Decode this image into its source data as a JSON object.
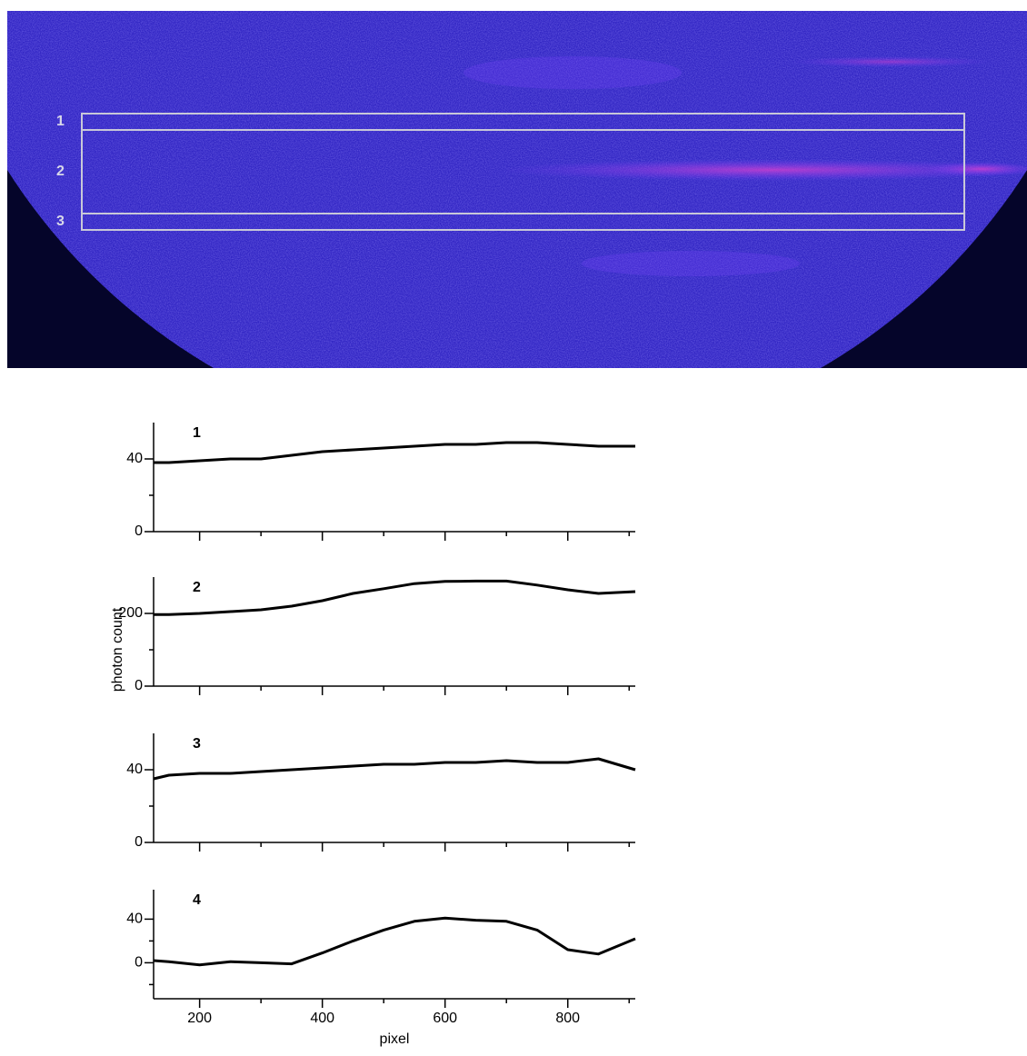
{
  "image": {
    "region_labels": [
      "1",
      "2",
      "3"
    ]
  },
  "chart_data": [
    {
      "type": "line",
      "title": "1",
      "x": [
        125,
        150,
        200,
        250,
        300,
        350,
        400,
        450,
        500,
        550,
        600,
        650,
        700,
        750,
        800,
        850,
        910
      ],
      "series": [
        {
          "color": "#000000",
          "values": [
            38,
            38,
            39,
            40,
            40,
            42,
            44,
            45,
            46,
            47,
            48,
            48,
            49,
            49,
            48,
            47,
            47
          ]
        }
      ],
      "xlim": [
        125,
        910
      ],
      "ylim": [
        0,
        60
      ],
      "xticks": [
        200,
        400,
        600,
        800
      ],
      "xminor": [
        300,
        500,
        700,
        900
      ],
      "show_xtick_labels": false,
      "yticks": [
        0,
        40
      ],
      "yminor": [
        20
      ]
    },
    {
      "type": "line",
      "title": "2",
      "ylabel": "photon count",
      "x": [
        125,
        150,
        200,
        250,
        300,
        350,
        400,
        450,
        500,
        550,
        600,
        650,
        700,
        750,
        800,
        850,
        910
      ],
      "series": [
        {
          "color": "#000000",
          "values": [
            197,
            197,
            200,
            205,
            210,
            220,
            235,
            255,
            268,
            282,
            288,
            289,
            289,
            278,
            265,
            255,
            260
          ]
        }
      ],
      "xlim": [
        125,
        910
      ],
      "ylim": [
        0,
        300
      ],
      "xticks": [
        200,
        400,
        600,
        800
      ],
      "xminor": [
        300,
        500,
        700,
        900
      ],
      "show_xtick_labels": false,
      "yticks": [
        0,
        200
      ],
      "yminor": [
        100
      ]
    },
    {
      "type": "line",
      "title": "3",
      "x": [
        125,
        150,
        200,
        250,
        300,
        350,
        400,
        450,
        500,
        550,
        600,
        650,
        700,
        750,
        800,
        850,
        910
      ],
      "series": [
        {
          "color": "#000000",
          "values": [
            35,
            37,
            38,
            38,
            39,
            40,
            41,
            42,
            43,
            43,
            44,
            44,
            45,
            44,
            44,
            46,
            40
          ]
        }
      ],
      "xlim": [
        125,
        910
      ],
      "ylim": [
        0,
        60
      ],
      "xticks": [
        200,
        400,
        600,
        800
      ],
      "xminor": [
        300,
        500,
        700,
        900
      ],
      "show_xtick_labels": false,
      "yticks": [
        0,
        40
      ],
      "yminor": [
        20
      ]
    },
    {
      "type": "line",
      "title": "4",
      "xlabel": "pixel",
      "x": [
        125,
        150,
        200,
        250,
        300,
        350,
        400,
        450,
        500,
        550,
        600,
        650,
        700,
        750,
        800,
        850,
        910
      ],
      "series": [
        {
          "color": "#000000",
          "values": [
            2,
            1,
            -2,
            1,
            0,
            -1,
            9,
            20,
            30,
            38,
            41,
            39,
            38,
            30,
            12,
            8,
            22
          ]
        }
      ],
      "xlim": [
        125,
        910
      ],
      "ylim": [
        -33,
        67
      ],
      "xticks": [
        200,
        400,
        600,
        800
      ],
      "xminor": [
        300,
        500,
        700,
        900
      ],
      "show_xtick_labels": true,
      "yticks": [
        0,
        40
      ],
      "yminor": [
        -20,
        20
      ]
    }
  ]
}
